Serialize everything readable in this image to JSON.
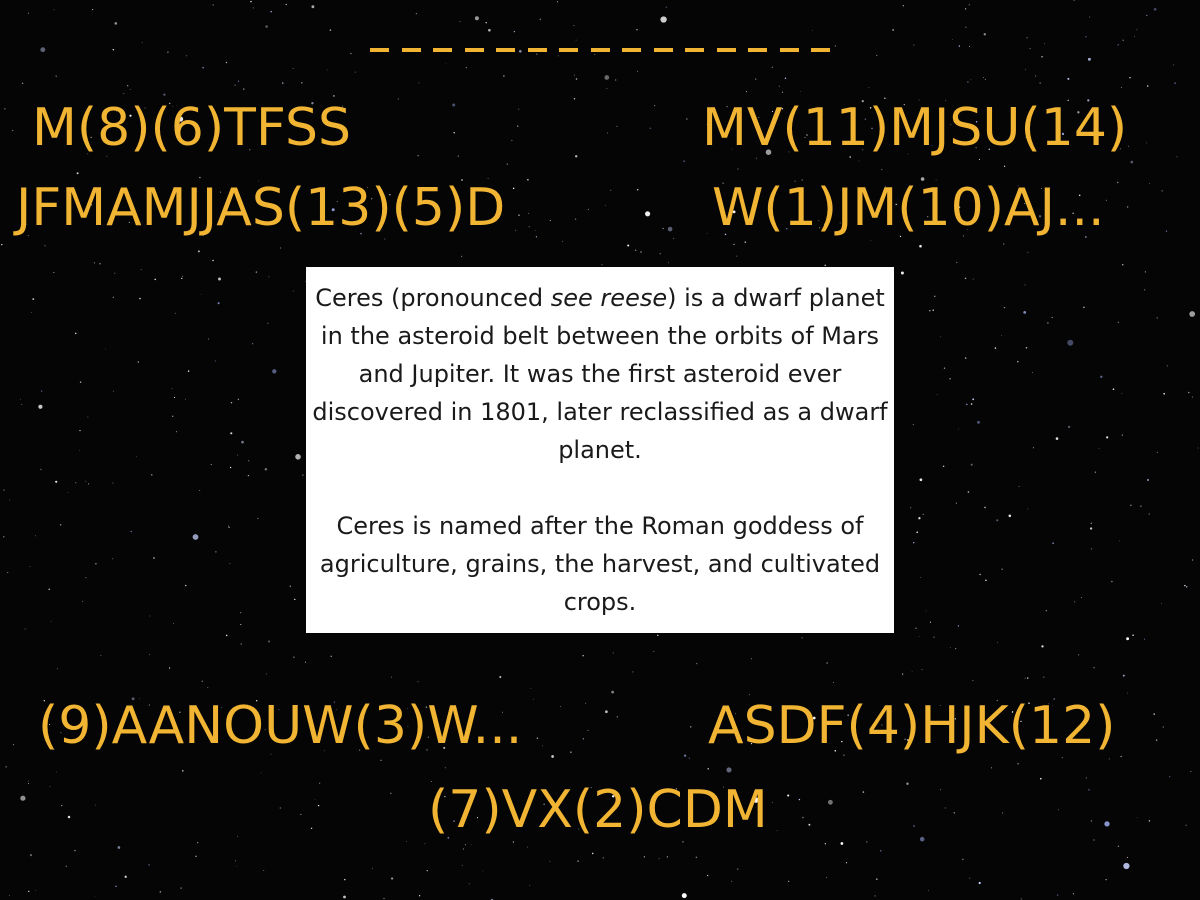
{
  "answer_blanks": {
    "count": 15
  },
  "clues": {
    "top_left": "M(8)(6)TFSS",
    "top_right": "MV(11)MJSU(14)",
    "middle_left": "JFMAMJJAS(13)(5)D",
    "middle_right": "W(1)JM(10)AJ...",
    "bottom_left": "(9)AANOUW(3)W...",
    "bottom_right": "ASDF(4)HJK(12)",
    "bottom_center": "(7)VX(2)CDM"
  },
  "info": {
    "p1_a": "Ceres (pronounced ",
    "p1_em": "see reese",
    "p1_b": ") is a dwarf planet in the asteroid belt between the orbits of Mars and Jupiter. It was the first asteroid ever discovered in 1801, later reclassified as a dwarf planet.",
    "p2": "Ceres is named after the Roman goddess of agriculture, grains, the harvest, and cultivated crops."
  },
  "colors": {
    "clue_text": "#f2b533",
    "background": "#050505",
    "info_box": "#ffffff"
  }
}
